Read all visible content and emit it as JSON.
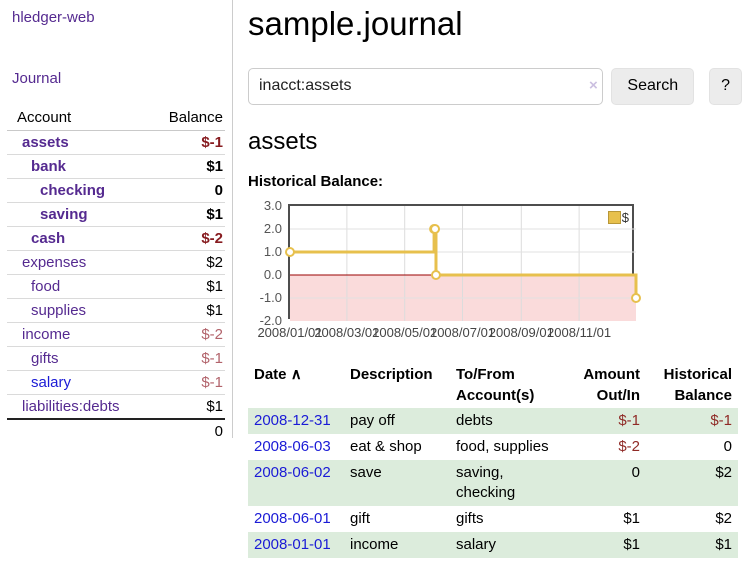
{
  "app": {
    "brand": "hledger-web",
    "nav_journal": "Journal"
  },
  "sidebar": {
    "header": {
      "account": "Account",
      "balance": "Balance"
    },
    "accounts": [
      {
        "name": "assets",
        "level": 1,
        "bold": true,
        "balance": "$-1",
        "neg": true
      },
      {
        "name": "bank",
        "level": 2,
        "bold": true,
        "balance": "$1",
        "neg": false
      },
      {
        "name": "checking",
        "level": 3,
        "bold": true,
        "balance": "0",
        "neg": false
      },
      {
        "name": "saving",
        "level": 3,
        "bold": true,
        "balance": "$1",
        "neg": false
      },
      {
        "name": "cash",
        "level": 2,
        "bold": true,
        "balance": "$-2",
        "neg": true
      },
      {
        "name": "expenses",
        "level": 1,
        "bold": false,
        "balance": "$2",
        "neg": false
      },
      {
        "name": "food",
        "level": 2,
        "bold": false,
        "balance": "$1",
        "neg": false
      },
      {
        "name": "supplies",
        "level": 2,
        "bold": false,
        "balance": "$1",
        "neg": false
      },
      {
        "name": "income",
        "level": 1,
        "bold": false,
        "balance": "$-2",
        "neg": true
      },
      {
        "name": "gifts",
        "level": 2,
        "bold": false,
        "balance": "$-1",
        "neg": true
      },
      {
        "name": "salary",
        "level": 2,
        "bold": false,
        "balance": "$-1",
        "neg": true,
        "blue": true
      },
      {
        "name": "liabilities:debts",
        "level": 1,
        "bold": false,
        "balance": "$1",
        "neg": false
      }
    ],
    "total": "0"
  },
  "header": {
    "title": "sample.journal"
  },
  "search": {
    "value": "inacct:assets",
    "clear_icon": "×",
    "button_label": "Search",
    "help_label": "?"
  },
  "account_page": {
    "title": "assets",
    "chart_label": "Historical Balance:"
  },
  "chart_data": {
    "type": "line",
    "title": "Historical Balance",
    "step": true,
    "x_range": [
      "2008-01-01",
      "2008-12-31"
    ],
    "ylim": [
      -2,
      3
    ],
    "series": [
      {
        "name": "$",
        "color": "#e7c04d",
        "points": [
          [
            "2008-01-01",
            1
          ],
          [
            "2008-06-01",
            2
          ],
          [
            "2008-06-02",
            2
          ],
          [
            "2008-06-03",
            0
          ],
          [
            "2008-12-31",
            -1
          ]
        ]
      }
    ],
    "yticks": [
      {
        "v": 3,
        "label": "3.0"
      },
      {
        "v": 2,
        "label": "2.0"
      },
      {
        "v": 1,
        "label": "1.0"
      },
      {
        "v": 0,
        "label": "0.0"
      },
      {
        "v": -1,
        "label": "-1.0"
      },
      {
        "v": -2,
        "label": "-2.0"
      }
    ],
    "xticks": [
      {
        "date": "2008-01-01",
        "label": "2008/01/01"
      },
      {
        "date": "2008-03-01",
        "label": "2008/03/01"
      },
      {
        "date": "2008-05-01",
        "label": "2008/05/01"
      },
      {
        "date": "2008-07-01",
        "label": "2008/07/01"
      },
      {
        "date": "2008-09-01",
        "label": "2008/09/01"
      },
      {
        "date": "2008-11-01",
        "label": "2008/11/01"
      }
    ],
    "legend": "$",
    "legend_position": "top-right",
    "grid": true,
    "negative_fill": "#fadbdb",
    "zero_line_color": "#990000"
  },
  "register": {
    "sort_icon": "∧",
    "columns": [
      {
        "label": "Date"
      },
      {
        "label": "Description"
      },
      {
        "label": "To/From\nAccount(s)"
      },
      {
        "label": "Amount\nOut/In"
      },
      {
        "label": "Historical\nBalance"
      }
    ],
    "rows": [
      {
        "date": "2008-12-31",
        "description": "pay off",
        "accounts": "debts",
        "amount": "$-1",
        "balance": "$-1"
      },
      {
        "date": "2008-06-03",
        "description": "eat & shop",
        "accounts": "food, supplies",
        "amount": "$-2",
        "balance": "0"
      },
      {
        "date": "2008-06-02",
        "description": "save",
        "accounts": "saving, checking",
        "amount": "0",
        "balance": "$2"
      },
      {
        "date": "2008-06-01",
        "description": "gift",
        "accounts": "gifts",
        "amount": "$1",
        "balance": "$2"
      },
      {
        "date": "2008-01-01",
        "description": "income",
        "accounts": "salary",
        "amount": "$1",
        "balance": "$1"
      }
    ]
  },
  "colors": {
    "link_purple": "#552a90",
    "link_blue": "#1b1bd6",
    "negative_dark_red": "#871c20",
    "negative_light_rose": "#b2636b",
    "register_negative": "#8f2a26",
    "row_green": "#dcecdc",
    "chart_gold": "#e7c04d",
    "chart_negative_fill": "#fadbdb",
    "chart_zero_line": "#990000",
    "button_gray": "#ececec"
  }
}
